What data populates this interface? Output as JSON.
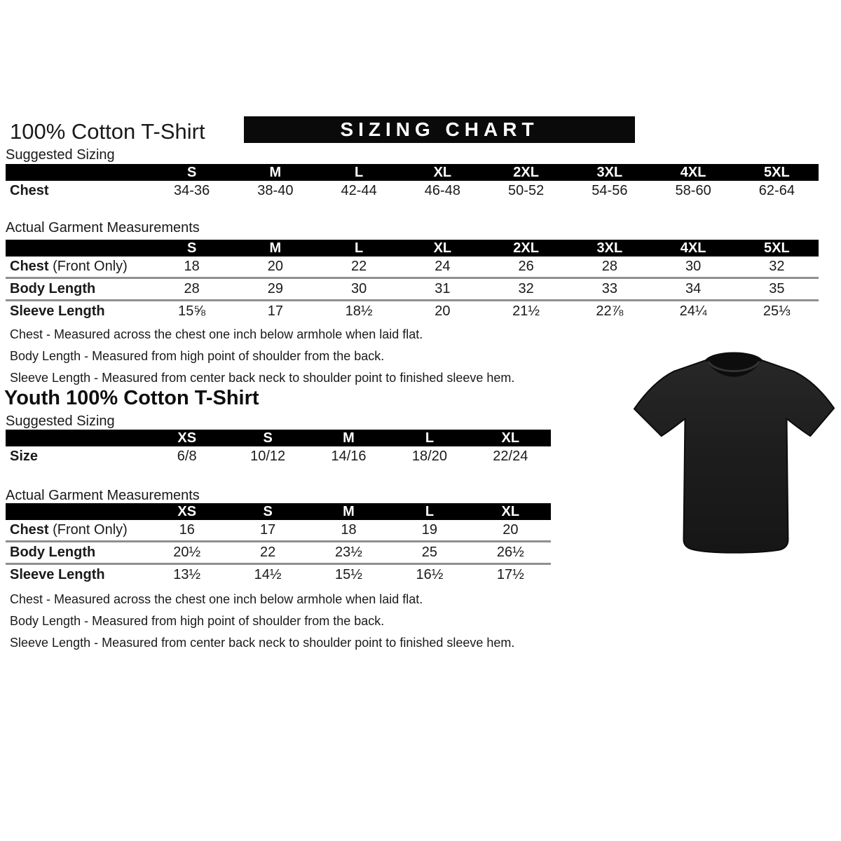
{
  "page": {
    "title": "100% Cotton T-Shirt",
    "banner_title": "SIZING CHART"
  },
  "colors": {
    "banner_bg": "#0a0a0a",
    "banner_text": "#ffffff",
    "table_header_bg": "#000000",
    "table_header_text": "#ffffff",
    "row_separator": "#8f8f8f",
    "tshirt": "#1d1d1d"
  },
  "adult": {
    "suggested": {
      "section_label": "Suggested Sizing",
      "columns": [
        "S",
        "M",
        "L",
        "XL",
        "2XL",
        "3XL",
        "4XL",
        "5XL"
      ],
      "separators": false,
      "rows": [
        {
          "label": "Chest",
          "suffix": "",
          "values": [
            "34-36",
            "38-40",
            "42-44",
            "46-48",
            "50-52",
            "54-56",
            "58-60",
            "62-64"
          ]
        }
      ]
    },
    "actual": {
      "section_label": "Actual Garment Measurements",
      "columns": [
        "S",
        "M",
        "L",
        "XL",
        "2XL",
        "3XL",
        "4XL",
        "5XL"
      ],
      "separators": true,
      "rows": [
        {
          "label": "Chest",
          "suffix": "(Front Only)",
          "values": [
            "18",
            "20",
            "22",
            "24",
            "26",
            "28",
            "30",
            "32"
          ]
        },
        {
          "label": "Body Length",
          "suffix": "",
          "values": [
            "28",
            "29",
            "30",
            "31",
            "32",
            "33",
            "34",
            "35"
          ]
        },
        {
          "label": "Sleeve Length",
          "suffix": "",
          "values": [
            "15⅝",
            "17",
            "18½",
            "20",
            "21½",
            "22⅞",
            "24¼",
            "25⅓"
          ]
        }
      ]
    },
    "notes": [
      "Chest - Measured across the chest one inch below armhole when laid flat.",
      "Body Length - Measured from high point of shoulder from the back.",
      "Sleeve Length - Measured from center back neck to shoulder point to finished sleeve hem."
    ]
  },
  "youth": {
    "title": "Youth 100% Cotton T-Shirt",
    "suggested": {
      "section_label": "Suggested Sizing",
      "columns": [
        "XS",
        "S",
        "M",
        "L",
        "XL"
      ],
      "separators": false,
      "rows": [
        {
          "label": "Size",
          "suffix": "",
          "values": [
            "6/8",
            "10/12",
            "14/16",
            "18/20",
            "22/24"
          ]
        }
      ]
    },
    "actual": {
      "section_label": "Actual Garment Measurements",
      "columns": [
        "XS",
        "S",
        "M",
        "L",
        "XL"
      ],
      "separators": true,
      "rows": [
        {
          "label": "Chest",
          "suffix": "(Front Only)",
          "values": [
            "16",
            "17",
            "18",
            "19",
            "20"
          ]
        },
        {
          "label": "Body Length",
          "suffix": "",
          "values": [
            "20½",
            "22",
            "23½",
            "25",
            "26½"
          ]
        },
        {
          "label": "Sleeve Length",
          "suffix": "",
          "values": [
            "13½",
            "14½",
            "15½",
            "16½",
            "17½"
          ]
        }
      ]
    },
    "notes": [
      "Chest - Measured across the chest one inch below armhole when laid flat.",
      "Body Length - Measured from high point of shoulder from the back.",
      "Sleeve Length - Measured from center back neck to shoulder point to finished sleeve hem."
    ]
  },
  "tshirt": {
    "image_name": "blank-black-t-shirt",
    "color": "#1d1d1d"
  }
}
